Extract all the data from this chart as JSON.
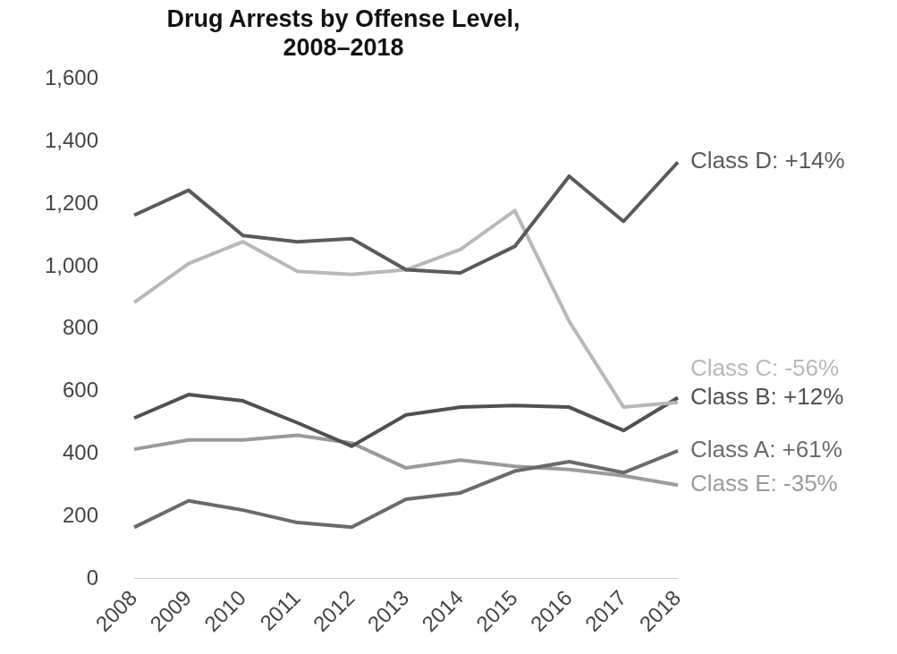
{
  "chart_data": {
    "type": "line",
    "title": "Drug Arrests by Offense Level, 2008–2018",
    "categories": [
      "2008",
      "2009",
      "2010",
      "2011",
      "2012",
      "2013",
      "2014",
      "2015",
      "2016",
      "2017",
      "2018"
    ],
    "series": [
      {
        "name": "Class D: +14%",
        "color": "#5a5a5a",
        "values": [
          1165,
          1245,
          1100,
          1080,
          1090,
          990,
          980,
          1065,
          1290,
          1145,
          1335
        ]
      },
      {
        "name": "Class C: -56%",
        "color": "#b8b8b8",
        "values": [
          885,
          1010,
          1080,
          985,
          975,
          990,
          1055,
          1180,
          825,
          550,
          565
        ]
      },
      {
        "name": "Class B: +12%",
        "color": "#505050",
        "values": [
          515,
          590,
          570,
          500,
          425,
          525,
          550,
          555,
          550,
          475,
          580
        ]
      },
      {
        "name": "Class A: +61%",
        "color": "#6a6a6a",
        "values": [
          165,
          250,
          220,
          180,
          165,
          255,
          275,
          345,
          375,
          340,
          410
        ]
      },
      {
        "name": "Class E: -35%",
        "color": "#9a9a9a",
        "values": [
          415,
          445,
          445,
          460,
          435,
          355,
          380,
          360,
          350,
          330,
          300
        ]
      }
    ],
    "ylim": [
      0,
      1600
    ],
    "yticks": [
      0,
      200,
      400,
      600,
      800,
      {
        "value": 1000,
        "label": "1,000"
      },
      {
        "value": 1200,
        "label": "1,200"
      },
      {
        "value": 1400,
        "label": "1,400"
      },
      {
        "value": 1600,
        "label": "1,600"
      }
    ],
    "grid": false,
    "legend": false,
    "marker": "none",
    "line_style": "solid"
  }
}
